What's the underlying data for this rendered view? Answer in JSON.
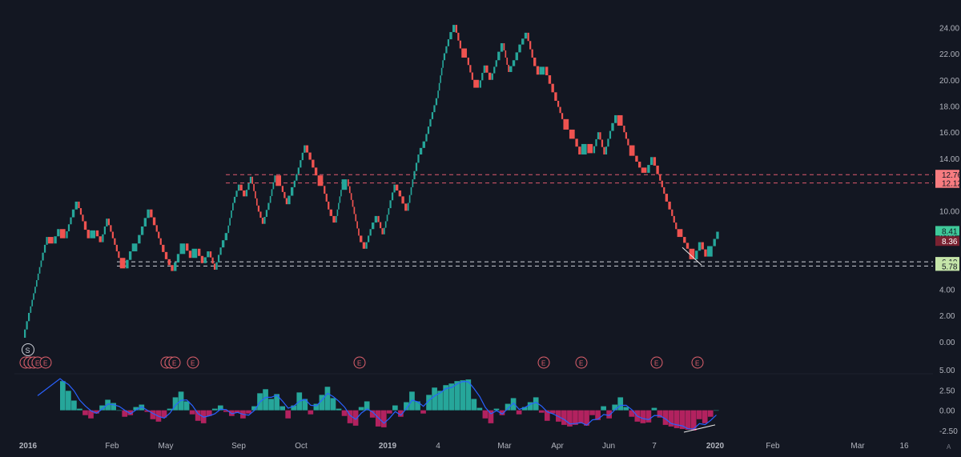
{
  "colors": {
    "background": "#131722",
    "up": "#26a69a",
    "down": "#ef5350",
    "hist_pos": "#26a69a",
    "hist_neg": "#b2225f",
    "macd_line": "#2962ff",
    "level_red": "#e05a6e",
    "level_white": "#d1d4dc",
    "axis_text": "#b2b5be",
    "tag_green_bg": "#3fc99a",
    "tag_red_bg": "#f77c80",
    "tag_dark_red_bg": "#7a2231",
    "tag_light_green_bg": "#c5e5a9"
  },
  "chart_data": [
    {
      "type": "line",
      "style": "renko",
      "title": "",
      "xlabel": "",
      "ylabel": "",
      "ylim": [
        -0.8,
        25
      ],
      "y_ticks": [
        "24.00",
        "22.00",
        "20.00",
        "18.00",
        "16.00",
        "14.00",
        "12.00",
        "10.00",
        "8.00",
        "6.00",
        "4.00",
        "2.00",
        "0.00"
      ],
      "x_ticks": [
        "2016",
        "Feb",
        "May",
        "Sep",
        "Oct",
        "2019",
        "4",
        "Mar",
        "Apr",
        "Jun",
        "7",
        "2020",
        "Feb",
        "Mar",
        "16"
      ],
      "grid": false,
      "series": [
        {
          "values": [
            0.3,
            2.2,
            4.2,
            6.2,
            8.0,
            7.5,
            8.6,
            7.9,
            9.5,
            10.7,
            9.2,
            7.9,
            8.5,
            7.6,
            9.4,
            7.9,
            6.4,
            5.6,
            6.9,
            7.5,
            8.8,
            10.1,
            8.9,
            7.4,
            6.3,
            5.4,
            6.7,
            7.5,
            6.4,
            7.1,
            6.0,
            6.9,
            5.5,
            7.2,
            8.3,
            10.6,
            12.0,
            11.1,
            12.6,
            10.4,
            9.0,
            10.6,
            12.7,
            11.9,
            10.5,
            11.8,
            13.3,
            15.0,
            13.9,
            12.7,
            11.9,
            10.1,
            9.1,
            11.6,
            12.4,
            10.3,
            8.1,
            7.1,
            8.6,
            9.6,
            8.2,
            10.2,
            12.0,
            11.1,
            10.0,
            12.4,
            14.3,
            15.3,
            17.0,
            18.6,
            21.5,
            23.1,
            24.2,
            22.4,
            21.7,
            20.0,
            19.4,
            21.1,
            20.0,
            21.5,
            22.8,
            20.6,
            21.5,
            22.7,
            23.6,
            21.7,
            20.4,
            21.0,
            19.7,
            18.4,
            17.0,
            16.2,
            15.5,
            14.3,
            15.1,
            14.4,
            16.0,
            14.3,
            16.1,
            17.3,
            16.5,
            15.0,
            14.2,
            13.3,
            12.9,
            14.1,
            12.8,
            11.3,
            10.1,
            8.6,
            8.0,
            7.1,
            6.3,
            7.6,
            6.5,
            7.3,
            8.4
          ]
        },
        {
          "name": "",
          "values": []
        }
      ],
      "levels": [
        {
          "value": 12.76,
          "label": "12.76",
          "color": "red"
        },
        {
          "value": 12.12,
          "label": "12.12",
          "color": "red"
        },
        {
          "value": 6.1,
          "label": "6.10",
          "color": "white"
        },
        {
          "value": 5.78,
          "label": "5.78",
          "color": "white"
        }
      ],
      "price_tags": [
        {
          "value": 8.41,
          "label": "8.41",
          "style": "green"
        },
        {
          "value": 8.36,
          "label": "8.36",
          "style": "dark-red"
        }
      ],
      "markers": {
        "split": {
          "label": "S"
        },
        "earnings": {
          "label": "E",
          "count": 13
        }
      }
    },
    {
      "type": "bar",
      "style": "histogram",
      "title": "",
      "ylim": [
        -2.9,
        5.0
      ],
      "y_ticks": [
        "5.00",
        "2.50",
        "0.00",
        "-2.50"
      ],
      "values": [
        3.6,
        2.4,
        1.2,
        0.2,
        -0.6,
        -1.0,
        -0.4,
        0.6,
        1.3,
        0.9,
        0.0,
        -0.8,
        -0.6,
        0.4,
        0.7,
        -0.2,
        -1.1,
        -1.4,
        -0.9,
        0.2,
        1.6,
        2.3,
        1.1,
        -0.5,
        -1.3,
        -1.6,
        -0.7,
        0.2,
        0.6,
        -0.2,
        -0.7,
        -0.3,
        -1.0,
        -0.4,
        0.5,
        2.1,
        2.6,
        1.4,
        2.0,
        0.5,
        -1.0,
        0.6,
        2.2,
        1.4,
        -0.5,
        0.8,
        1.9,
        2.9,
        1.5,
        0.2,
        -0.7,
        -1.6,
        -1.9,
        0.4,
        1.1,
        -0.9,
        -2.0,
        -2.1,
        -0.4,
        0.6,
        -0.8,
        1.0,
        2.3,
        1.1,
        -0.4,
        1.9,
        2.8,
        2.4,
        3.1,
        3.3,
        3.6,
        3.7,
        3.8,
        1.4,
        0.3,
        -1.0,
        -1.6,
        0.2,
        -0.6,
        0.8,
        1.5,
        -0.5,
        0.4,
        1.0,
        1.6,
        -0.3,
        -1.3,
        -0.4,
        -1.4,
        -1.8,
        -2.0,
        -1.8,
        -1.6,
        -1.9,
        -0.6,
        -1.2,
        0.5,
        -1.0,
        0.7,
        1.6,
        0.4,
        -0.8,
        -1.4,
        -1.6,
        -1.5,
        0.3,
        -0.9,
        -1.8,
        -2.0,
        -2.2,
        -2.3,
        -2.4,
        -2.5,
        -1.1,
        -1.6,
        -0.8,
        0.0
      ],
      "series": [
        {
          "name": "",
          "values": []
        }
      ]
    }
  ]
}
